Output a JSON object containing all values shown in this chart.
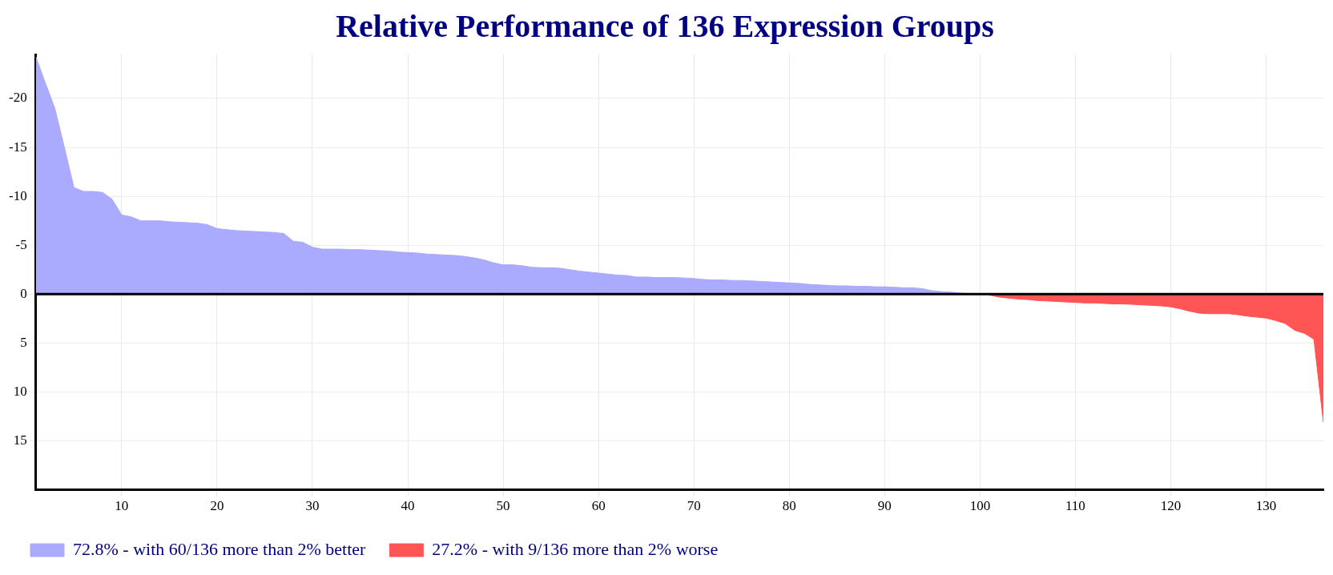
{
  "chart_data": {
    "type": "area",
    "title": "Relative Performance of 136 Expression Groups",
    "series": [
      {
        "name": "72.8% - with 60/136 more than 2% better",
        "color": "#aaaaff",
        "x": [
          1,
          2,
          3,
          4,
          5,
          6,
          7,
          8,
          9,
          10,
          11,
          12,
          13,
          14,
          15,
          16,
          17,
          18,
          19,
          20,
          21,
          22,
          23,
          24,
          25,
          26,
          27,
          28,
          29,
          30,
          31,
          32,
          33,
          34,
          35,
          36,
          37,
          38,
          39,
          40,
          41,
          42,
          43,
          44,
          45,
          46,
          47,
          48,
          49,
          50,
          51,
          52,
          53,
          54,
          55,
          56,
          57,
          58,
          59,
          60,
          61,
          62,
          63,
          64,
          65,
          66,
          67,
          68,
          69,
          70,
          71,
          72,
          73,
          74,
          75,
          76,
          77,
          78,
          79,
          80,
          81,
          82,
          83,
          84,
          85,
          86,
          87,
          88,
          89,
          90,
          91,
          92,
          93,
          94,
          95,
          96,
          97,
          98,
          99,
          100
        ],
        "values": [
          -24.3,
          -21.6,
          -19.0,
          -15.0,
          -10.9,
          -10.5,
          -10.5,
          -10.4,
          -9.7,
          -8.1,
          -7.9,
          -7.5,
          -7.5,
          -7.5,
          -7.4,
          -7.35,
          -7.3,
          -7.25,
          -7.1,
          -6.7,
          -6.6,
          -6.5,
          -6.45,
          -6.4,
          -6.35,
          -6.3,
          -6.2,
          -5.4,
          -5.3,
          -4.8,
          -4.6,
          -4.6,
          -4.6,
          -4.55,
          -4.55,
          -4.5,
          -4.45,
          -4.4,
          -4.3,
          -4.25,
          -4.2,
          -4.1,
          -4.05,
          -4.0,
          -3.95,
          -3.85,
          -3.7,
          -3.5,
          -3.2,
          -3.0,
          -3.0,
          -2.9,
          -2.75,
          -2.7,
          -2.7,
          -2.65,
          -2.5,
          -2.35,
          -2.25,
          -2.15,
          -2.05,
          -1.95,
          -1.9,
          -1.75,
          -1.75,
          -1.7,
          -1.7,
          -1.7,
          -1.65,
          -1.6,
          -1.5,
          -1.45,
          -1.45,
          -1.4,
          -1.4,
          -1.35,
          -1.3,
          -1.25,
          -1.2,
          -1.15,
          -1.1,
          -1.0,
          -0.95,
          -0.9,
          -0.85,
          -0.85,
          -0.8,
          -0.8,
          -0.75,
          -0.75,
          -0.7,
          -0.65,
          -0.65,
          -0.55,
          -0.35,
          -0.25,
          -0.2,
          -0.1,
          -0.05,
          0
        ]
      },
      {
        "name": "27.2% - with 9/136 more than 2% worse",
        "color": "#ff5555",
        "x": [
          101,
          102,
          103,
          104,
          105,
          106,
          107,
          108,
          109,
          110,
          111,
          112,
          113,
          114,
          115,
          116,
          117,
          118,
          119,
          120,
          121,
          122,
          123,
          124,
          125,
          126,
          127,
          128,
          129,
          130,
          131,
          132,
          133,
          134,
          135,
          136
        ],
        "values": [
          0.1,
          0.3,
          0.4,
          0.5,
          0.55,
          0.65,
          0.7,
          0.75,
          0.8,
          0.85,
          0.9,
          0.9,
          0.95,
          1.0,
          1.0,
          1.05,
          1.1,
          1.15,
          1.2,
          1.3,
          1.5,
          1.75,
          1.95,
          2.0,
          2.0,
          2.0,
          2.1,
          2.25,
          2.35,
          2.45,
          2.7,
          3.0,
          3.7,
          4.0,
          4.6,
          13.1
        ]
      }
    ],
    "xlim": [
      1,
      136
    ],
    "xticks": [
      10,
      20,
      30,
      40,
      50,
      60,
      70,
      80,
      90,
      100,
      110,
      120,
      130
    ],
    "ylim": [
      20,
      -24.5
    ],
    "yticks": [
      -20,
      -15,
      -10,
      -5,
      0,
      5,
      10,
      15
    ],
    "grid": true,
    "legend": "bottom",
    "ref_lines": [
      {
        "axis": "y",
        "value": 0,
        "color": "#000000"
      }
    ]
  }
}
